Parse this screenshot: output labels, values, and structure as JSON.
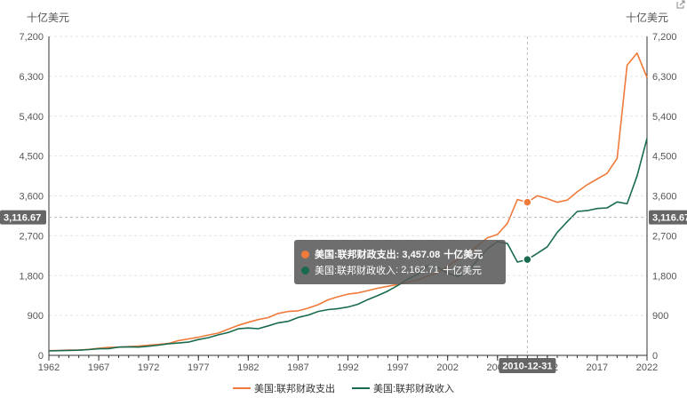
{
  "chart_data": {
    "type": "line",
    "yunit_left": "十亿美元",
    "yunit_right": "十亿美元",
    "ylim": [
      0,
      7200
    ],
    "yticks": [
      0,
      900,
      1800,
      2700,
      3600,
      4500,
      5400,
      6300,
      7200
    ],
    "ytick_labels": [
      "0",
      "900",
      "1,800",
      "2,700",
      "3,600",
      "4,500",
      "5,400",
      "6,300",
      "7,200"
    ],
    "xlim": [
      1962,
      2022
    ],
    "xticks": [
      1962,
      1967,
      1972,
      1977,
      1982,
      1987,
      1992,
      1997,
      2002,
      2007,
      2012,
      2017,
      2022
    ],
    "grid": true,
    "legend_position": "bottom",
    "crosshair": {
      "x_label": "2010-12-31",
      "x_value": 2010,
      "y_value": 3116.67,
      "y_label": "3,116.67"
    },
    "tooltip": {
      "rows": [
        {
          "series": "美国:联邦财政支出",
          "value": "3,457.08",
          "unit": "十亿美元"
        },
        {
          "series": "美国:联邦财政收入",
          "value": "2,162.71",
          "unit": "十亿美元"
        }
      ]
    },
    "x": [
      1962,
      1963,
      1964,
      1965,
      1966,
      1967,
      1968,
      1969,
      1970,
      1971,
      1972,
      1973,
      1974,
      1975,
      1976,
      1977,
      1978,
      1979,
      1980,
      1981,
      1982,
      1983,
      1984,
      1985,
      1986,
      1987,
      1988,
      1989,
      1990,
      1991,
      1992,
      1993,
      1994,
      1995,
      1996,
      1997,
      1998,
      1999,
      2000,
      2001,
      2002,
      2003,
      2004,
      2005,
      2006,
      2007,
      2008,
      2009,
      2010,
      2011,
      2012,
      2013,
      2014,
      2015,
      2016,
      2017,
      2018,
      2019,
      2020,
      2021,
      2022
    ],
    "series": [
      {
        "name": "美国:联邦财政支出",
        "color": "#f07a3a",
        "values": [
          107,
          111,
          119,
          118,
          135,
          158,
          178,
          184,
          196,
          210,
          230,
          246,
          269,
          332,
          372,
          410,
          459,
          504,
          591,
          678,
          746,
          808,
          852,
          946,
          990,
          1004,
          1065,
          1144,
          1253,
          1324,
          1382,
          1410,
          1462,
          1516,
          1561,
          1601,
          1652,
          1702,
          1789,
          1863,
          2011,
          2160,
          2293,
          2472,
          2655,
          2729,
          2983,
          3518,
          3457,
          3603,
          3537,
          3455,
          3506,
          3692,
          3853,
          3982,
          4109,
          4447,
          6550,
          6822,
          6272
        ]
      },
      {
        "name": "美国:联邦财政收入",
        "color": "#1a6b4e",
        "values": [
          100,
          107,
          113,
          117,
          131,
          149,
          153,
          187,
          193,
          187,
          207,
          231,
          263,
          279,
          298,
          356,
          400,
          463,
          517,
          599,
          618,
          601,
          666,
          734,
          769,
          854,
          909,
          991,
          1032,
          1055,
          1091,
          1154,
          1259,
          1352,
          1453,
          1579,
          1722,
          1827,
          2025,
          1991,
          1853,
          1782,
          1880,
          2153,
          2406,
          2568,
          2524,
          2105,
          2163,
          2303,
          2450,
          2775,
          3021,
          3250,
          3268,
          3316,
          3330,
          3463,
          3421,
          4047,
          4897
        ]
      }
    ]
  }
}
